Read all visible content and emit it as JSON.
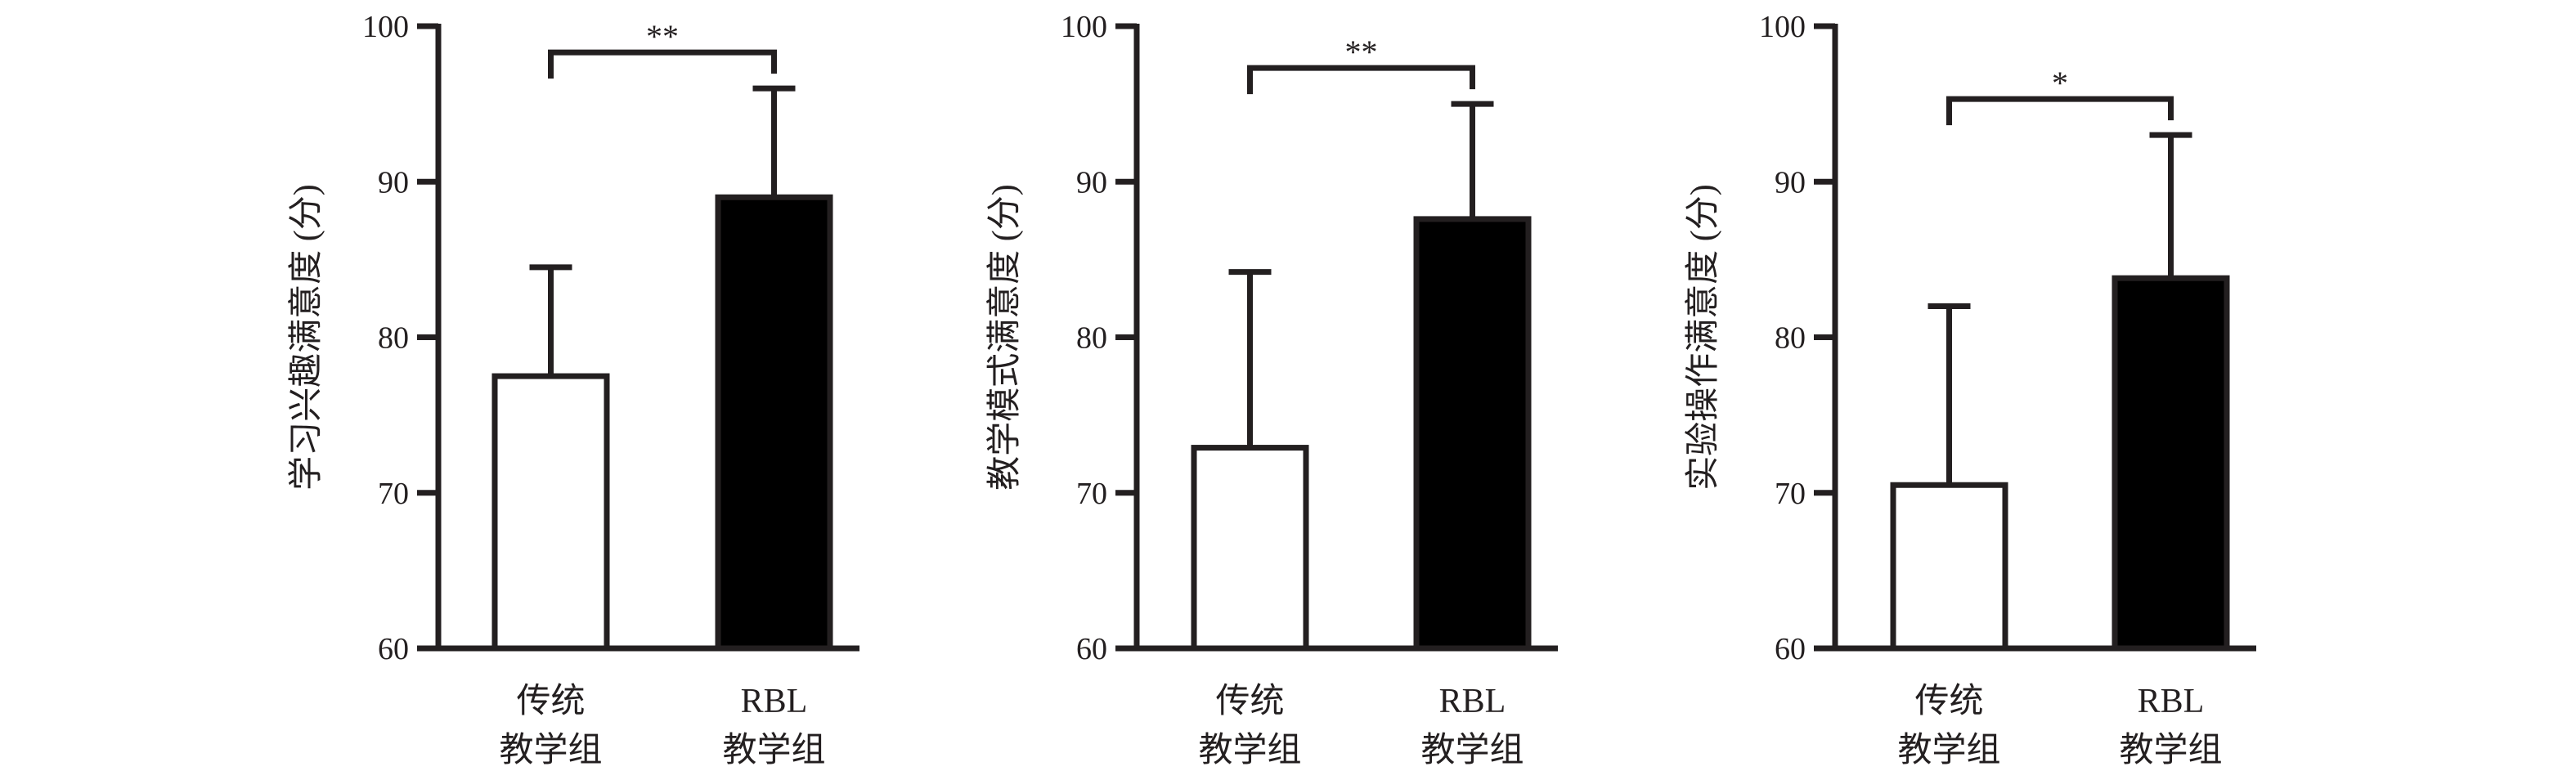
{
  "chart_data": [
    {
      "type": "bar",
      "ylabel": "学习兴趣满意度 (分)",
      "ylim": [
        60,
        100
      ],
      "yticks": [
        "60",
        "70",
        "80",
        "90",
        "100"
      ],
      "categories": [
        [
          "传统",
          "教学组"
        ],
        [
          "RBL",
          "教学组"
        ]
      ],
      "values": [
        77.5,
        89.0
      ],
      "errors": [
        7.0,
        7.0
      ],
      "bar_colors": [
        "#ffffff",
        "#000000"
      ],
      "significance": "**"
    },
    {
      "type": "bar",
      "ylabel": "教学模式满意度 (分)",
      "ylim": [
        60,
        100
      ],
      "yticks": [
        "60",
        "70",
        "80",
        "90",
        "100"
      ],
      "categories": [
        [
          "传统",
          "教学组"
        ],
        [
          "RBL",
          "教学组"
        ]
      ],
      "values": [
        72.9,
        87.6
      ],
      "errors": [
        11.3,
        7.4
      ],
      "bar_colors": [
        "#ffffff",
        "#000000"
      ],
      "significance": "**"
    },
    {
      "type": "bar",
      "ylabel": "实验操作满意度 (分)",
      "ylim": [
        60,
        100
      ],
      "yticks": [
        "60",
        "70",
        "80",
        "90",
        "100"
      ],
      "categories": [
        [
          "传统",
          "教学组"
        ],
        [
          "RBL",
          "教学组"
        ]
      ],
      "values": [
        70.5,
        83.8
      ],
      "errors": [
        11.5,
        9.2
      ],
      "bar_colors": [
        "#ffffff",
        "#000000"
      ],
      "significance": "*"
    }
  ]
}
